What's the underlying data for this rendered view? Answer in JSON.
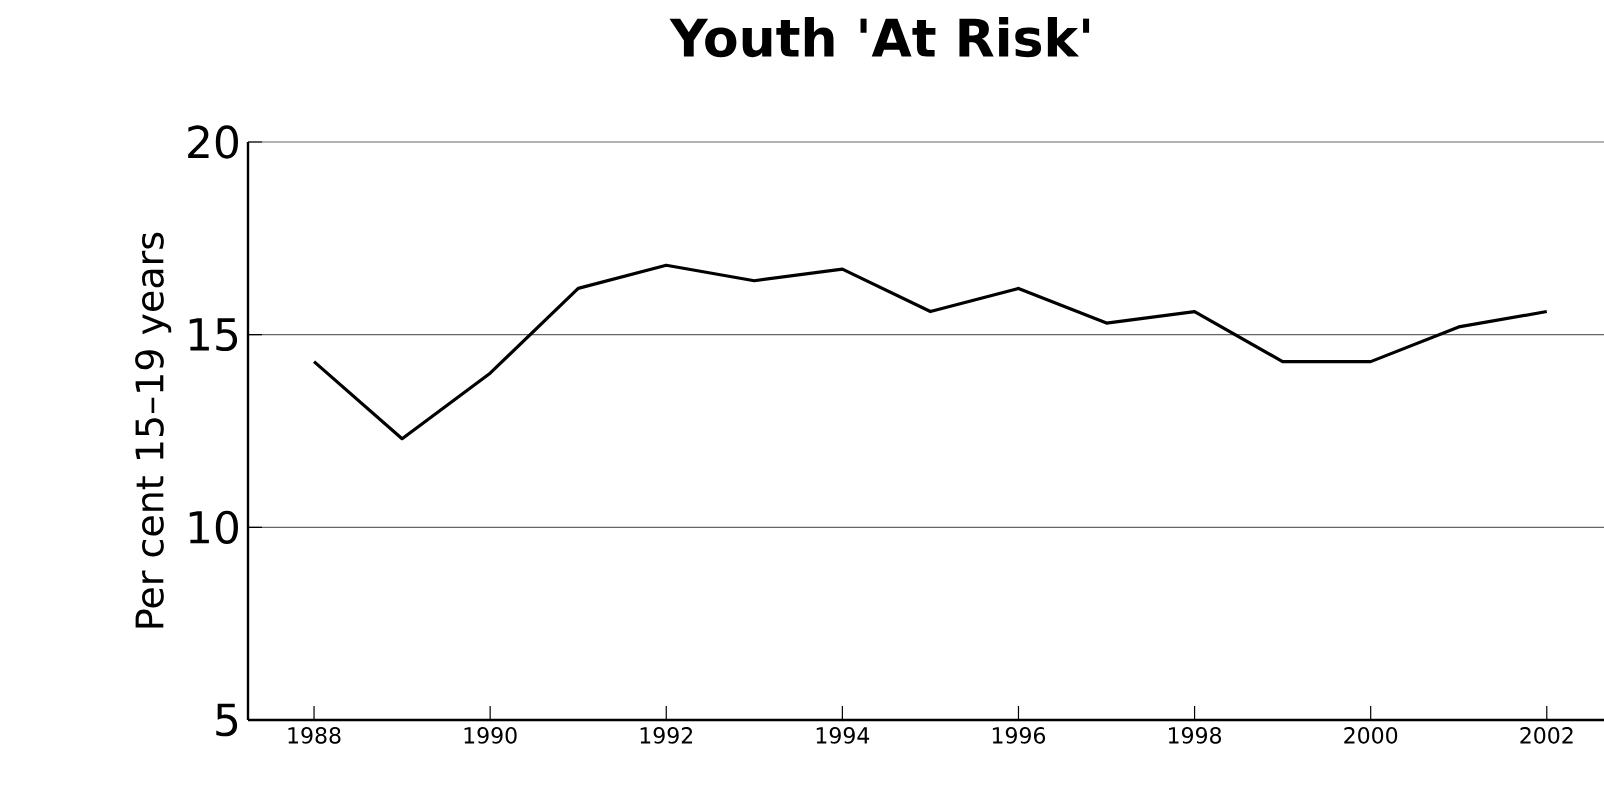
{
  "chart_data": {
    "type": "line",
    "title": "Youth 'At Risk'",
    "ylabel": "Per cent 15–19 years",
    "x": [
      1988,
      1989,
      1990,
      1991,
      1992,
      1993,
      1994,
      1995,
      1996,
      1997,
      1998,
      1999,
      2000,
      2001,
      2002
    ],
    "series": [
      {
        "color": "#000000",
        "values": [
          14.3,
          12.3,
          14.0,
          16.2,
          16.8,
          16.4,
          16.7,
          15.6,
          16.2,
          15.3,
          15.6,
          14.3,
          14.3,
          15.2,
          15.6
        ]
      }
    ],
    "xlim": [
      1987.25,
      2002.65
    ],
    "ylim": [
      5,
      20
    ],
    "xticks": [
      1988,
      1990,
      1992,
      1994,
      1996,
      1998,
      2000,
      2002
    ],
    "yticks": [
      5,
      10,
      15,
      20
    ],
    "grid": "y",
    "marker": "none",
    "line_style": "solid"
  }
}
